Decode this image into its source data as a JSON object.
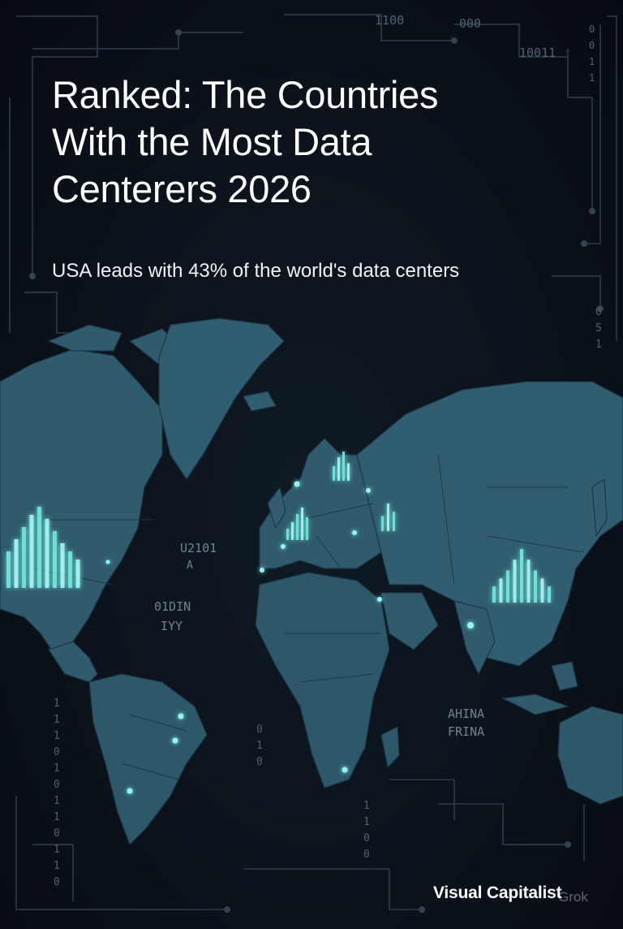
{
  "title_lines": [
    "Ranked: The Countries",
    "With the Most Data",
    "Centerers 2026"
  ],
  "subtitle": "USA leads with 43% of the world's data centers",
  "brand": "Visual Capitalist",
  "watermark": "Grok",
  "code_snippets": {
    "top_1": "1100",
    "top_2": "000",
    "top_3": "10011",
    "right_col": "0\n0\n1\n1",
    "right_col2": "0\n5\n1",
    "map_atlantic_1": "U2101",
    "map_atlantic_2": "A",
    "map_label_1": "01DIN",
    "map_label_2": "IYY",
    "africa_1": "AHINA",
    "africa_2": "FRINA",
    "left_col": "1\n1\n1\n0\n1\n0\n1\n1\n0\n1\n1\n0",
    "mid_col": "0\n1\n0",
    "mid_col2": "1\n1\n0\n0"
  },
  "colors": {
    "background": "#0b1119",
    "land": "#2e5a6c",
    "land_dark": "#234a5b",
    "border_lines": "#1b3443",
    "glow": "#7ff5ea",
    "circuit": "#2a3845",
    "text": "#ffffff"
  },
  "hotspot_levels": {
    "usa": [
      0.45,
      0.6,
      0.75,
      0.9,
      1.0,
      0.85,
      0.7,
      0.55,
      0.45,
      0.35
    ],
    "china": [
      0.3,
      0.45,
      0.6,
      0.8,
      1.0,
      0.8,
      0.6,
      0.45,
      0.3
    ],
    "scandinavia": [
      0.5,
      0.8,
      1.0,
      0.6
    ],
    "western_europe": [
      0.35,
      0.55,
      0.8,
      1.0,
      0.7
    ],
    "russia": [
      0.55,
      1.0,
      0.7
    ]
  }
}
